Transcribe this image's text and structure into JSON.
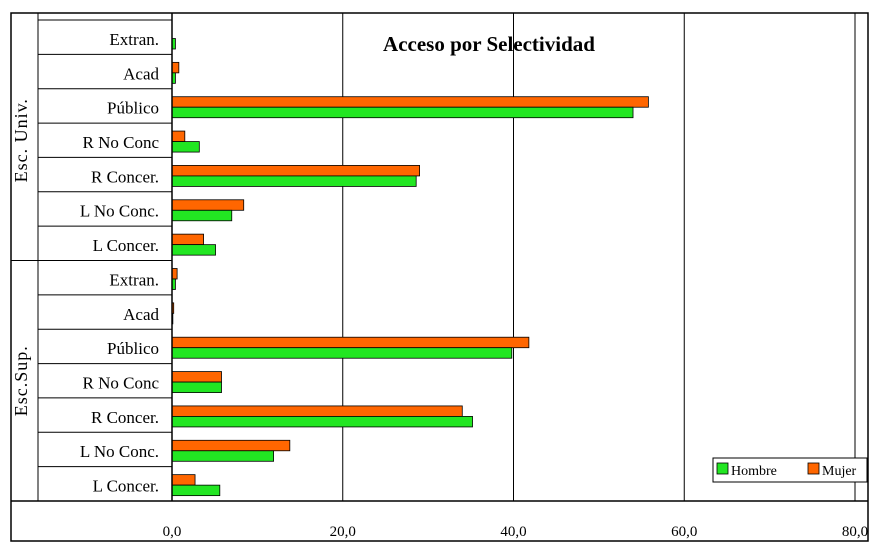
{
  "chart_data": {
    "type": "bar",
    "orientation": "horizontal",
    "title": "Acceso por Selectividad",
    "xlabel": "",
    "ylabel": "",
    "xlim": [
      0,
      80
    ],
    "xticks": [
      "0,0",
      "20,0",
      "40,0",
      "60,0",
      "80,0"
    ],
    "grid": "vertical",
    "legend_position": "bottom-right",
    "groups": [
      {
        "name": "Esc. Univ.",
        "categories": [
          "Extran.",
          "Acad",
          "Público",
          "R No Conc",
          "R Concer.",
          "L No Conc.",
          "L Concer."
        ]
      },
      {
        "name": "Esc.Sup.",
        "categories": [
          "Extran.",
          "Acad",
          "Público",
          "R No Conc",
          "R Concer.",
          "L No Conc.",
          "L Concer."
        ]
      }
    ],
    "series": [
      {
        "name": "Hombre",
        "color": "#22e622",
        "values": [
          0.4,
          0.4,
          54.0,
          3.2,
          28.6,
          7.0,
          5.1,
          0.4,
          0.1,
          39.8,
          5.8,
          35.2,
          11.9,
          5.6
        ]
      },
      {
        "name": "Mujer",
        "color": "#ff6600",
        "values": [
          0.0,
          0.8,
          55.8,
          1.5,
          29.0,
          8.4,
          3.7,
          0.6,
          0.2,
          41.8,
          5.8,
          34.0,
          13.8,
          2.7
        ]
      }
    ]
  }
}
